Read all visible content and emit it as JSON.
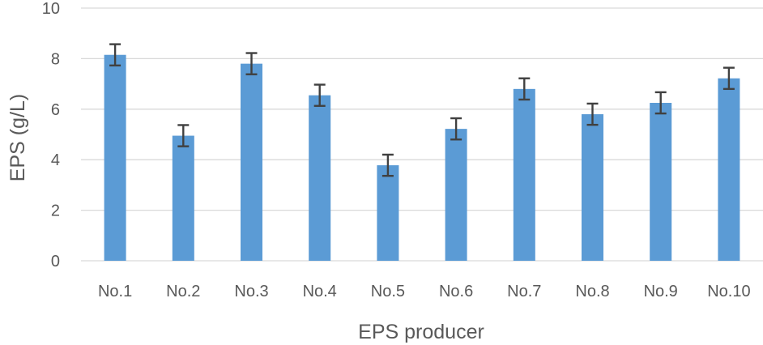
{
  "chart_data": {
    "type": "bar",
    "title": "",
    "xlabel": "EPS producer",
    "ylabel": "EPS (g/L)",
    "categories": [
      "No.1",
      "No.2",
      "No.3",
      "No.4",
      "No.5",
      "No.6",
      "No.7",
      "No.8",
      "No.9",
      "No.10"
    ],
    "values": [
      8.15,
      4.95,
      7.8,
      6.55,
      3.78,
      5.22,
      6.8,
      5.8,
      6.25,
      7.22
    ],
    "errors": [
      0.42,
      0.42,
      0.42,
      0.42,
      0.42,
      0.42,
      0.42,
      0.42,
      0.42,
      0.42
    ],
    "ylim": [
      0,
      10
    ],
    "yticks": [
      "0",
      "2",
      "4",
      "6",
      "8",
      "10"
    ],
    "grid": true,
    "legend": "none",
    "bar_color": "#5B9BD5",
    "error_color": "#404040",
    "grid_color": "#D9D9D9",
    "text_color": "#595959"
  }
}
